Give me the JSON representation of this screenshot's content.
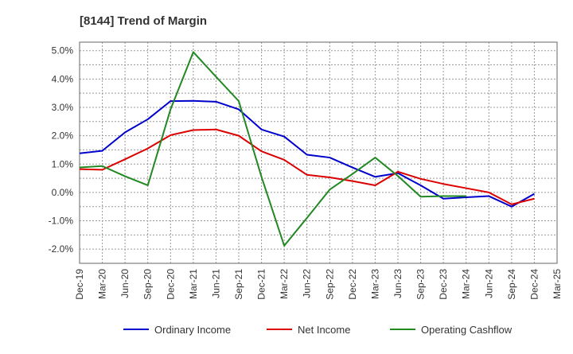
{
  "chart_data": {
    "type": "line",
    "title": "[8144]  Trend of Margin",
    "xlabel": "",
    "ylabel": "",
    "ylim": [
      -2.5,
      5.3
    ],
    "y_ticks": [
      5.0,
      4.0,
      3.0,
      2.0,
      1.0,
      0.0,
      -1.0,
      -2.0
    ],
    "y_tick_labels": [
      "5.0%",
      "4.0%",
      "3.0%",
      "2.0%",
      "1.0%",
      "0.0%",
      "-1.0%",
      "-2.0%"
    ],
    "x_tick_labels": [
      "Dec-19",
      "Mar-20",
      "Jun-20",
      "Sep-20",
      "Dec-20",
      "Mar-21",
      "Jun-21",
      "Sep-21",
      "Dec-21",
      "Mar-22",
      "Jun-22",
      "Sep-22",
      "Dec-22",
      "Mar-23",
      "Jun-23",
      "Sep-23",
      "Dec-23",
      "Mar-24",
      "Jun-24",
      "Sep-24",
      "Dec-24",
      "Mar-25"
    ],
    "grid": true,
    "legend_position": "bottom",
    "series": [
      {
        "name": "Ordinary Income",
        "color": "#0000cc",
        "values": [
          1.38,
          1.47,
          2.12,
          2.58,
          3.22,
          3.23,
          3.2,
          2.93,
          2.22,
          1.97,
          1.33,
          1.23,
          0.88,
          0.55,
          0.68,
          0.25,
          -0.22,
          -0.17,
          -0.13,
          -0.5,
          -0.05,
          null
        ]
      },
      {
        "name": "Net Income",
        "color": "#dd0000",
        "values": [
          0.82,
          0.8,
          1.17,
          1.55,
          2.02,
          2.2,
          2.22,
          2.0,
          1.45,
          1.15,
          0.62,
          0.53,
          0.4,
          0.25,
          0.73,
          0.48,
          0.3,
          0.15,
          0.0,
          -0.42,
          -0.22,
          null
        ]
      },
      {
        "name": "Operating Cashflow",
        "color": "#228822",
        "values": [
          0.88,
          0.93,
          0.57,
          0.25,
          2.93,
          4.95,
          4.08,
          3.22,
          0.55,
          -1.88,
          -0.9,
          0.1,
          0.65,
          1.23,
          0.58,
          -0.15,
          -0.13,
          -0.13,
          null,
          null,
          null,
          null
        ]
      }
    ]
  }
}
